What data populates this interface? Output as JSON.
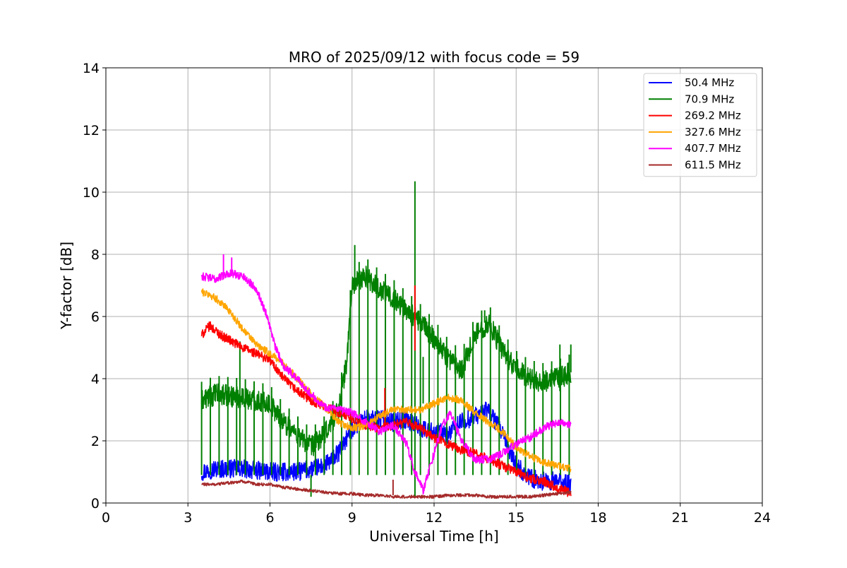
{
  "chart_data": {
    "type": "line",
    "title": "MRO of 2025/09/12 with focus code = 59",
    "xlabel": "Universal Time [h]",
    "ylabel": "Y-factor [dB]",
    "xlim": [
      0,
      24
    ],
    "ylim": [
      0,
      14
    ],
    "xticks": [
      0,
      3,
      6,
      9,
      12,
      15,
      18,
      21,
      24
    ],
    "yticks": [
      0,
      2,
      4,
      6,
      8,
      10,
      12,
      14
    ],
    "grid": true,
    "legend_position": "top-right",
    "series": [
      {
        "name": "50.4 MHz",
        "color": "#0000ff",
        "noise": 0.3,
        "x": [
          3.5,
          4,
          5,
          6,
          7,
          8,
          8.5,
          9,
          9.5,
          10,
          10.5,
          11,
          11.5,
          12,
          12.5,
          13,
          13.5,
          14,
          14.5,
          15,
          15.5,
          16,
          16.5,
          17
        ],
        "y": [
          1.0,
          1.1,
          1.1,
          1.0,
          1.0,
          1.2,
          1.6,
          2.4,
          2.7,
          2.7,
          2.6,
          2.7,
          2.4,
          2.3,
          2.2,
          2.6,
          2.8,
          3.0,
          2.2,
          1.2,
          0.8,
          0.7,
          0.7,
          0.6
        ]
      },
      {
        "name": "70.9 MHz",
        "color": "#008000",
        "noise": 0.35,
        "x": [
          3.5,
          4,
          5,
          6,
          6.5,
          7,
          7.5,
          8,
          8.5,
          8.8,
          9,
          9.5,
          10,
          10.5,
          11,
          11.5,
          12,
          12.5,
          13,
          13.5,
          14,
          14.5,
          15,
          15.5,
          16,
          16.5,
          17
        ],
        "y": [
          3.3,
          3.5,
          3.4,
          3.2,
          2.6,
          2.2,
          1.8,
          2.2,
          3.0,
          4.5,
          7.0,
          7.3,
          6.9,
          6.6,
          6.2,
          5.8,
          5.3,
          4.7,
          4.3,
          5.4,
          5.8,
          4.9,
          4.3,
          4.0,
          3.9,
          4.0,
          4.2
        ],
        "spikes": [
          [
            4.9,
            5.2,
            1.2
          ],
          [
            7.5,
            0.2,
            0.9
          ],
          [
            9.1,
            8.3,
            7.0
          ],
          [
            11.3,
            10.35,
            0.2
          ],
          [
            11.6,
            4.7,
            3.2
          ],
          [
            13.85,
            6.2,
            5.8
          ],
          [
            16.6,
            5.1,
            3.6
          ],
          [
            17.0,
            5.1,
            4.2
          ]
        ],
        "ticks": {
          "from": 3.5,
          "to": 17.0,
          "step": 0.32,
          "down_to": 0.9
        }
      },
      {
        "name": "269.2 MHz",
        "color": "#ff0000",
        "noise": 0.15,
        "x": [
          3.5,
          3.8,
          4.2,
          5,
          5.5,
          6,
          6.5,
          7,
          7.5,
          8,
          8.5,
          9,
          9.5,
          10,
          10.5,
          11,
          11.5,
          12,
          12.5,
          13,
          13.5,
          14,
          14.5,
          15,
          15.5,
          16,
          16.5,
          17
        ],
        "y": [
          5.4,
          5.7,
          5.4,
          5.0,
          4.8,
          4.6,
          4.0,
          3.6,
          3.3,
          3.1,
          2.9,
          2.7,
          2.5,
          2.4,
          2.5,
          2.6,
          2.4,
          2.1,
          1.9,
          1.7,
          1.6,
          1.4,
          1.2,
          1.0,
          0.8,
          0.7,
          0.5,
          0.3
        ],
        "spikes": [
          [
            10.2,
            3.7,
            2.5
          ],
          [
            11.3,
            7.0,
            4.9
          ]
        ]
      },
      {
        "name": "327.6 MHz",
        "color": "#ffa500",
        "noise": 0.12,
        "x": [
          3.5,
          4,
          4.5,
          5,
          5.5,
          6,
          6.5,
          7,
          7.5,
          8,
          8.5,
          9,
          9.5,
          10,
          10.5,
          11,
          11.5,
          12,
          12.5,
          13,
          13.5,
          14,
          14.5,
          15,
          15.5,
          16,
          16.5,
          17
        ],
        "y": [
          6.8,
          6.6,
          6.2,
          5.6,
          5.1,
          4.8,
          4.5,
          4.0,
          3.5,
          3.1,
          2.6,
          2.4,
          2.5,
          2.8,
          3.0,
          3.0,
          3.0,
          3.2,
          3.4,
          3.3,
          2.9,
          2.6,
          2.3,
          1.8,
          1.5,
          1.3,
          1.2,
          1.1
        ]
      },
      {
        "name": "407.7 MHz",
        "color": "#ff00ff",
        "noise": 0.13,
        "x": [
          3.5,
          4,
          4.5,
          5,
          5.5,
          5.9,
          6.2,
          6.5,
          7,
          7.5,
          8,
          8.5,
          9,
          9.5,
          10,
          10.5,
          11,
          11.3,
          11.6,
          12,
          12.3,
          12.6,
          13,
          13.5,
          14,
          14.5,
          15,
          15.5,
          16,
          16.5,
          17
        ],
        "y": [
          7.3,
          7.2,
          7.4,
          7.3,
          6.9,
          6.0,
          5.0,
          4.4,
          4.0,
          3.5,
          3.1,
          3.0,
          2.9,
          2.6,
          2.3,
          2.5,
          1.9,
          1.0,
          0.4,
          1.6,
          2.5,
          2.9,
          2.0,
          1.4,
          1.4,
          1.6,
          1.9,
          2.1,
          2.4,
          2.6,
          2.5
        ],
        "spikes": [
          [
            4.3,
            8.0,
            7.2
          ],
          [
            4.6,
            7.9,
            7.3
          ]
        ]
      },
      {
        "name": "611.5 MHz",
        "color": "#a52a2a",
        "noise": 0.05,
        "x": [
          3.5,
          4,
          4.5,
          5,
          5.5,
          6,
          6.5,
          7,
          7.5,
          8,
          8.5,
          9,
          9.5,
          10,
          10.5,
          11,
          11.5,
          12,
          12.5,
          13,
          13.5,
          14,
          14.5,
          15,
          15.5,
          16,
          16.5,
          17
        ],
        "y": [
          0.6,
          0.6,
          0.65,
          0.7,
          0.6,
          0.6,
          0.5,
          0.45,
          0.4,
          0.35,
          0.3,
          0.3,
          0.25,
          0.25,
          0.2,
          0.2,
          0.2,
          0.2,
          0.25,
          0.25,
          0.25,
          0.2,
          0.2,
          0.2,
          0.2,
          0.25,
          0.3,
          0.35
        ],
        "spikes": [
          [
            10.5,
            0.75,
            0.25
          ]
        ]
      }
    ]
  }
}
